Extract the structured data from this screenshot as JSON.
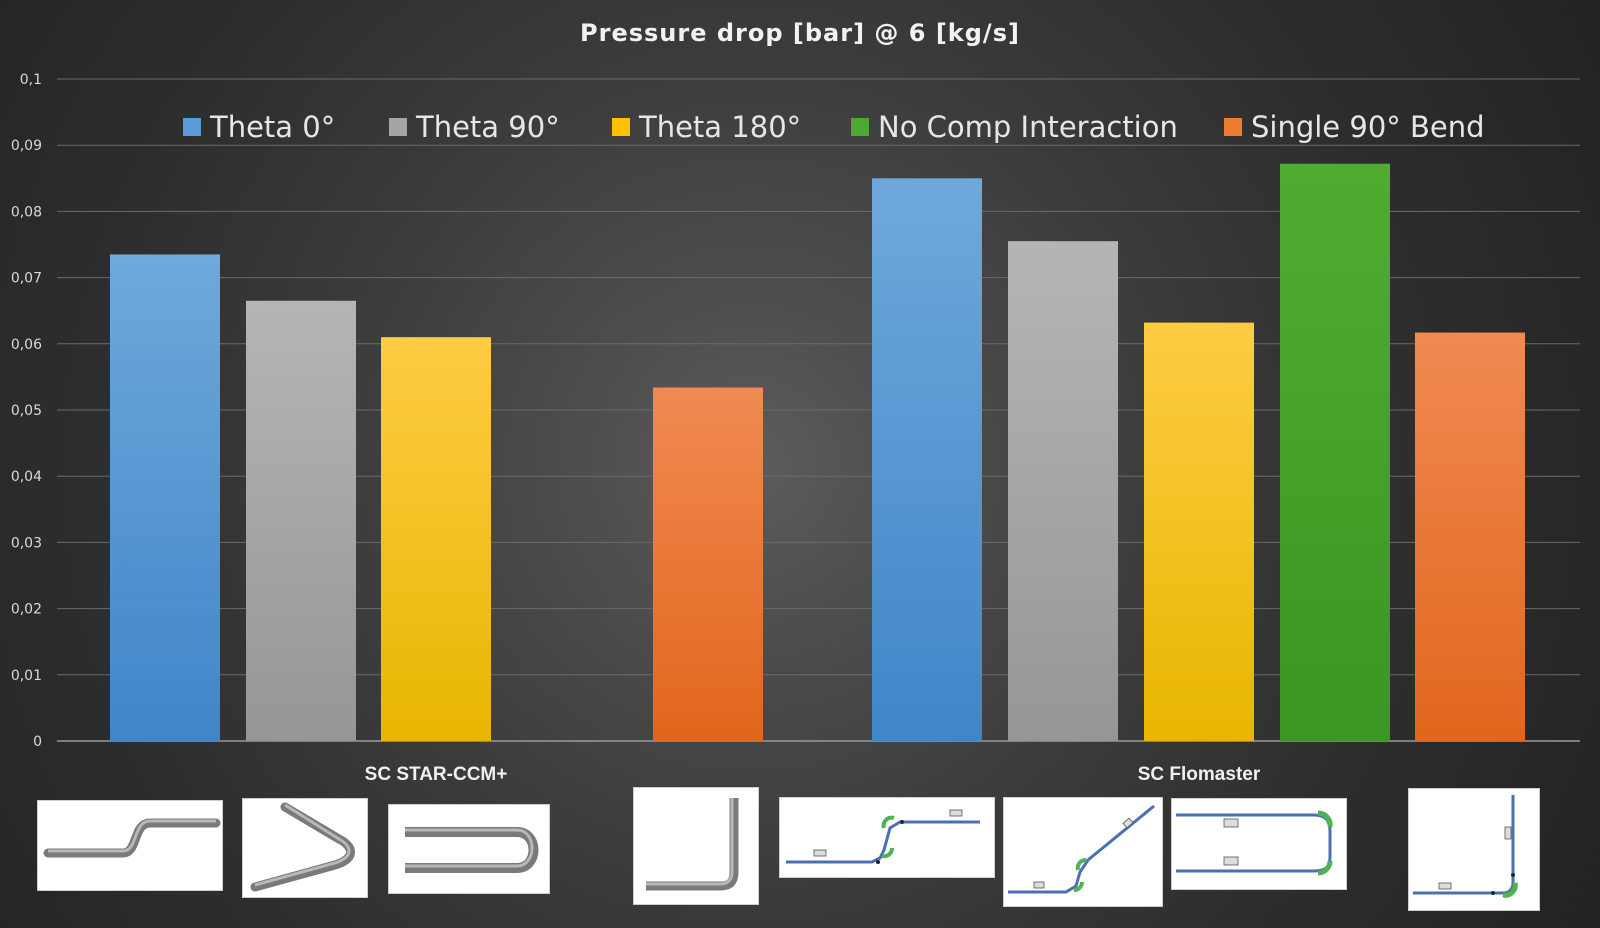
{
  "chart_data": {
    "type": "bar",
    "title": "Pressure drop [bar] @ 6 [kg/s]",
    "xlabel": "",
    "ylabel": "",
    "ylim": [
      0,
      0.1
    ],
    "yticks": [
      "0",
      "0,01",
      "0,02",
      "0,03",
      "0,04",
      "0,05",
      "0,06",
      "0,07",
      "0,08",
      "0,09",
      "0,1"
    ],
    "legend_position": "top",
    "grid": true,
    "legend": [
      {
        "name": "Theta 0°",
        "color": "#5b9bd5"
      },
      {
        "name": "Theta 90°",
        "color": "#a5a5a5"
      },
      {
        "name": "Theta 180°",
        "color": "#ffc000"
      },
      {
        "name": "No Comp Interaction",
        "color": "#4ea72e"
      },
      {
        "name": "Single 90° Bend",
        "color": "#ed7d31"
      }
    ],
    "groups": [
      {
        "label": "SC STAR-CCM+",
        "bars": [
          {
            "series": "Theta 0°",
            "value": 0.0735
          },
          {
            "series": "Theta 90°",
            "value": 0.0665
          },
          {
            "series": "Theta 180°",
            "value": 0.061
          },
          {
            "series": "Single 90° Bend",
            "value": 0.0534
          }
        ]
      },
      {
        "label": "SC Flomaster",
        "bars": [
          {
            "series": "Theta 0°",
            "value": 0.085
          },
          {
            "series": "Theta 90°",
            "value": 0.0755
          },
          {
            "series": "Theta 180°",
            "value": 0.0632
          },
          {
            "series": "No Comp Interaction",
            "value": 0.0872
          },
          {
            "series": "Single 90° Bend",
            "value": 0.0617
          }
        ]
      }
    ]
  },
  "thumbnails": [
    {
      "name": "star-thumb-s-pipe",
      "desc": "pipe-s-bend"
    },
    {
      "name": "star-thumb-v-pipe",
      "desc": "pipe-v-bend"
    },
    {
      "name": "star-thumb-u-pipe",
      "desc": "pipe-u-bend"
    },
    {
      "name": "single-bend-thumb",
      "desc": "pipe-single-90-bend"
    },
    {
      "name": "flomaster-thumb-1",
      "desc": "network-diagram"
    },
    {
      "name": "flomaster-thumb-2",
      "desc": "network-diagram"
    },
    {
      "name": "flomaster-thumb-3",
      "desc": "network-diagram"
    },
    {
      "name": "flomaster-thumb-4",
      "desc": "network-diagram"
    }
  ]
}
